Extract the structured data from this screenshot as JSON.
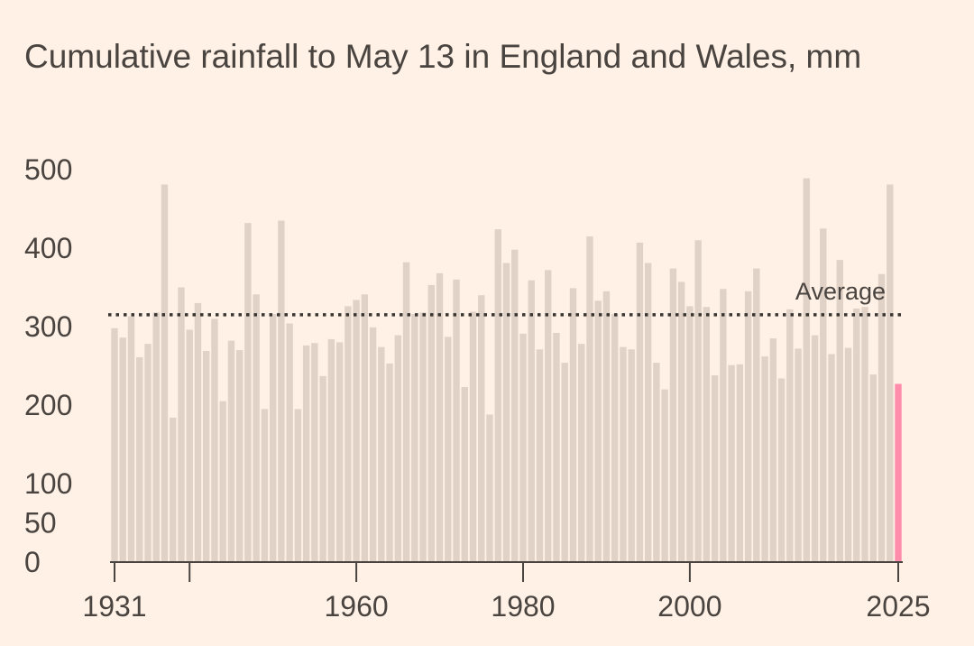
{
  "chart_data": {
    "type": "bar",
    "title": "Cumulative rainfall to May 13 in England and Wales, mm",
    "xlabel": "",
    "ylabel": "",
    "x_ticks": [
      "1931",
      "1960",
      "1980",
      "2000",
      "2025"
    ],
    "y_ticks": [
      0,
      50,
      100,
      200,
      300,
      400,
      500
    ],
    "ylim": [
      0,
      500
    ],
    "average": 315,
    "average_label": "Average",
    "highlight_year": 2025,
    "colors": {
      "bar": "#e1d2c7",
      "highlight": "#ff8cab",
      "background": "#fff1e5",
      "axis": "#4a4440"
    },
    "series": [
      {
        "years": [
          1931,
          1932,
          1933,
          1934,
          1935,
          1936,
          1937,
          1938,
          1939,
          1940,
          1941,
          1942,
          1943,
          1944,
          1945,
          1946,
          1947,
          1948,
          1949,
          1950,
          1951,
          1952,
          1953,
          1954,
          1955,
          1956,
          1957,
          1958,
          1959,
          1960,
          1961,
          1962,
          1963,
          1964,
          1965,
          1966,
          1967,
          1968,
          1969,
          1970,
          1971,
          1972,
          1973,
          1974,
          1975,
          1976,
          1977,
          1978,
          1979,
          1980,
          1981,
          1982,
          1983,
          1984,
          1985,
          1986,
          1987,
          1988,
          1989,
          1990,
          1991,
          1992,
          1993,
          1994,
          1995,
          1996,
          1997,
          1998,
          1999,
          2000,
          2001,
          2002,
          2003,
          2004,
          2005,
          2006,
          2007,
          2008,
          2009,
          2010,
          2011,
          2012,
          2013,
          2014,
          2015,
          2016,
          2017,
          2018,
          2019,
          2020,
          2021,
          2022,
          2023,
          2024,
          2025
        ],
        "values": [
          298,
          286,
          313,
          261,
          278,
          318,
          481,
          184,
          350,
          296,
          330,
          269,
          310,
          205,
          282,
          270,
          432,
          341,
          195,
          316,
          435,
          304,
          195,
          276,
          279,
          237,
          284,
          280,
          326,
          334,
          341,
          299,
          274,
          253,
          289,
          382,
          316,
          318,
          353,
          368,
          287,
          360,
          223,
          319,
          340,
          188,
          424,
          381,
          398,
          291,
          359,
          271,
          372,
          292,
          254,
          349,
          278,
          415,
          333,
          345,
          316,
          274,
          271,
          407,
          381,
          254,
          220,
          374,
          357,
          326,
          410,
          325,
          238,
          348,
          251,
          252,
          345,
          374,
          262,
          285,
          234,
          322,
          272,
          489,
          289,
          425,
          265,
          385,
          273,
          323,
          325,
          239,
          367,
          481,
          227
        ]
      }
    ]
  }
}
